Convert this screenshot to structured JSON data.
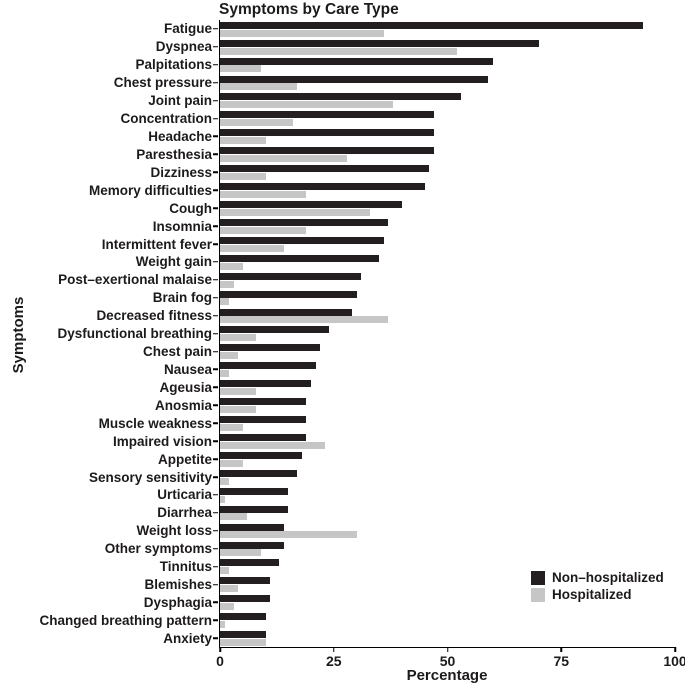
{
  "figure": {
    "title": "Symptoms by Care Type",
    "xlabel": "Percentage",
    "ylabel": "Symptoms"
  },
  "chart_data": {
    "type": "bar",
    "orientation": "horizontal",
    "title": "Symptoms by Care Type",
    "xlabel": "Percentage",
    "ylabel": "Symptoms",
    "xlim": [
      0,
      100
    ],
    "xticks": [
      0,
      25,
      50,
      75,
      100
    ],
    "grid": false,
    "legend_position": "bottom-right",
    "categories": [
      "Fatigue",
      "Dyspnea",
      "Palpitations",
      "Chest pressure",
      "Joint pain",
      "Concentration",
      "Headache",
      "Paresthesia",
      "Dizziness",
      "Memory difficulties",
      "Cough",
      "Insomnia",
      "Intermittent fever",
      "Weight gain",
      "Post–exertional malaise",
      "Brain fog",
      "Decreased fitness",
      "Dysfunctional breathing",
      "Chest pain",
      "Nausea",
      "Ageusia",
      "Anosmia",
      "Muscle weakness",
      "Impaired vision",
      "Appetite",
      "Sensory sensitivity",
      "Urticaria",
      "Diarrhea",
      "Weight loss",
      "Other symptoms",
      "Tinnitus",
      "Blemishes",
      "Dysphagia",
      "Changed breathing pattern",
      "Anxiety"
    ],
    "series": [
      {
        "name": "Non–hospitalized",
        "color": "#231f20",
        "values": [
          93,
          70,
          60,
          59,
          53,
          47,
          47,
          47,
          46,
          45,
          40,
          37,
          36,
          35,
          31,
          30,
          29,
          24,
          22,
          21,
          20,
          19,
          19,
          19,
          18,
          17,
          15,
          15,
          14,
          14,
          13,
          11,
          11,
          10,
          10
        ]
      },
      {
        "name": "Hospitalized",
        "color": "#c6c6c6",
        "values": [
          36,
          52,
          9,
          17,
          38,
          16,
          10,
          28,
          10,
          19,
          33,
          19,
          14,
          5,
          3,
          2,
          37,
          8,
          4,
          2,
          8,
          8,
          5,
          23,
          5,
          2,
          1,
          6,
          30,
          9,
          2,
          4,
          3,
          1,
          10
        ]
      }
    ]
  }
}
